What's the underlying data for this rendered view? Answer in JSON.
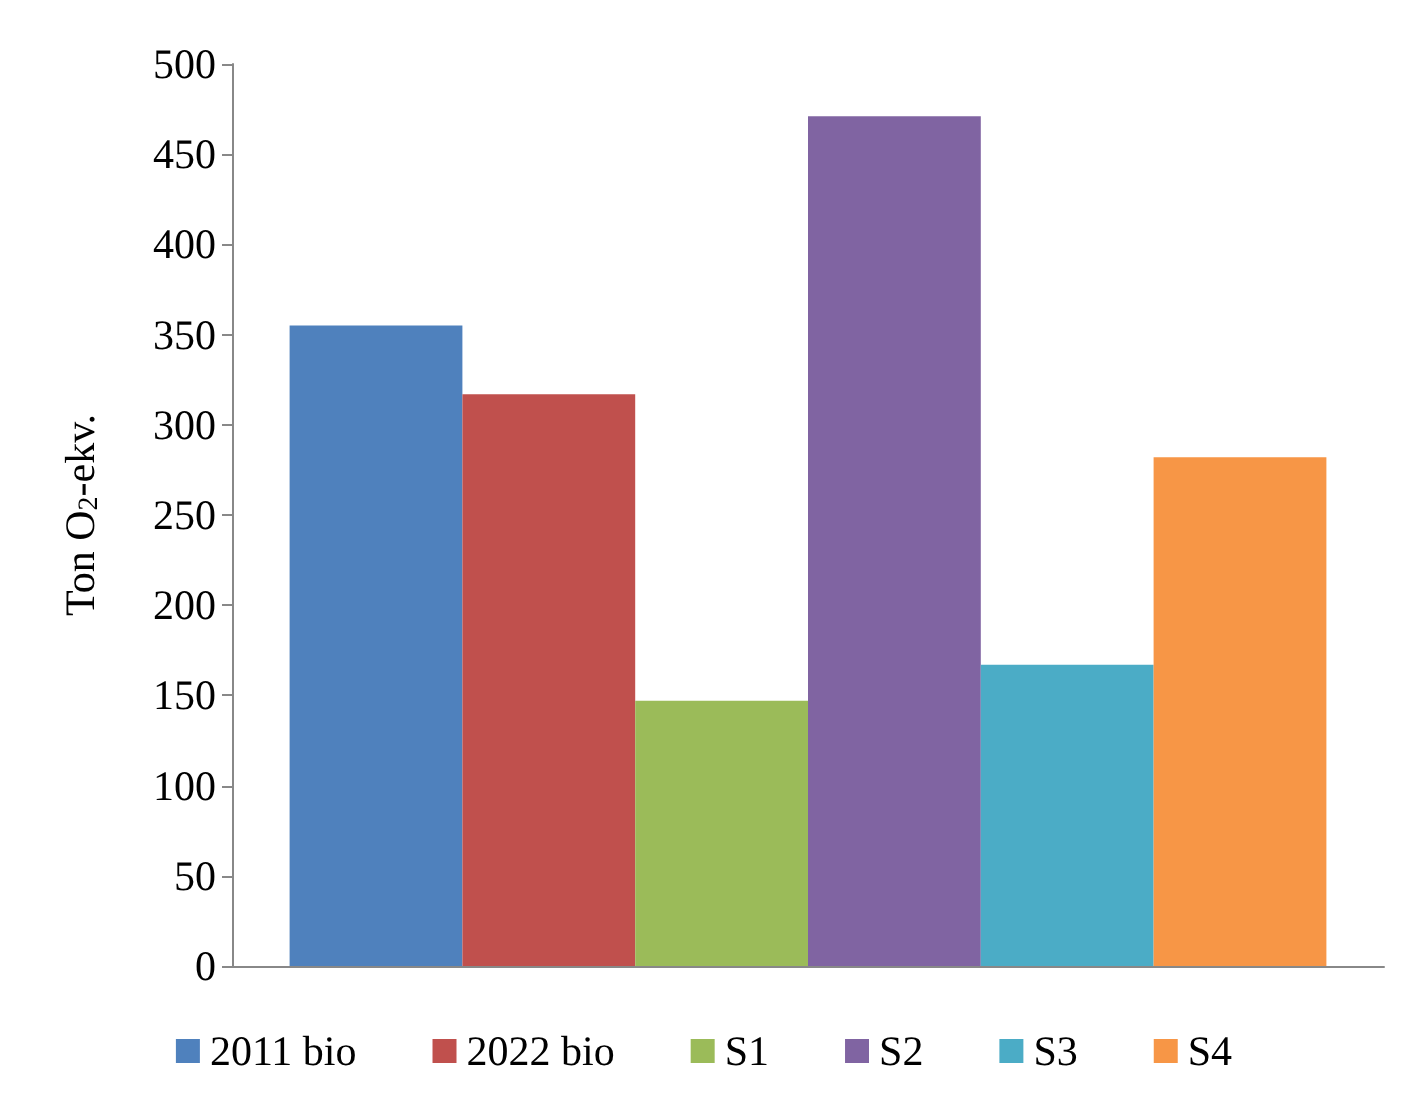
{
  "chart_data": {
    "type": "bar",
    "ylabel": "Ton O$_{2}$-ekv.",
    "categories": [
      null
    ],
    "series": [
      {
        "name": "2011 bio",
        "color": "#4f81bd",
        "values": [
          355
        ]
      },
      {
        "name": "2022 bio",
        "color": "#c0504d",
        "values": [
          317
        ]
      },
      {
        "name": "S1",
        "color": "#9bbb59",
        "values": [
          147
        ]
      },
      {
        "name": "S2",
        "color": "#8064a2",
        "values": [
          471
        ]
      },
      {
        "name": "S3",
        "color": "#4bacc6",
        "values": [
          167
        ]
      },
      {
        "name": "S4",
        "color": "#f79646",
        "values": [
          282
        ]
      }
    ],
    "ylim": [
      0,
      500
    ],
    "yticks": [
      0,
      50,
      100,
      150,
      200,
      250,
      300,
      350,
      400,
      450,
      500
    ],
    "grid": false,
    "legend": "bottom"
  }
}
